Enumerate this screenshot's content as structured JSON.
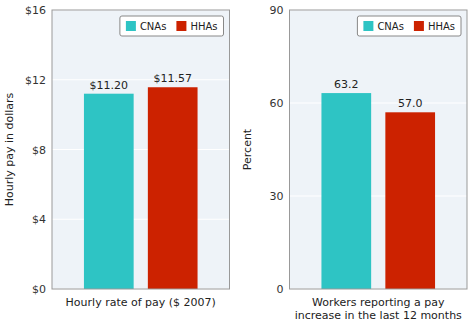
{
  "chart_data": [
    {
      "type": "bar",
      "xlabel": "Hourly rate of pay ($ 2007)",
      "ylabel": "Hourly pay in dollars",
      "categories": [
        "CNAs",
        "HHAs"
      ],
      "values": [
        11.2,
        11.57
      ],
      "value_labels": [
        "$11.20",
        "$11.57"
      ],
      "colors": [
        "#2EC4C4",
        "#CC2200"
      ],
      "ylim": [
        0,
        16
      ],
      "yticks": [
        {
          "value": 0,
          "label": "$0"
        },
        {
          "value": 4,
          "label": "$4"
        },
        {
          "value": 8,
          "label": "$8"
        },
        {
          "value": 12,
          "label": "$12"
        },
        {
          "value": 16,
          "label": "$16"
        }
      ],
      "grid": true,
      "legend": "upper right",
      "data_labels": true,
      "tick_labels": "y"
    },
    {
      "type": "bar",
      "xlabel": "Workers reporting a pay\nincrease in the last 12 months",
      "ylabel": "Percent",
      "categories": [
        "CNAs",
        "HHAs"
      ],
      "values": [
        63.2,
        57.0
      ],
      "value_labels": [
        "63.2",
        "57.0"
      ],
      "colors": [
        "#2EC4C4",
        "#CC2200"
      ],
      "ylim": [
        0,
        90
      ],
      "yticks": [
        0,
        30,
        60,
        90
      ],
      "grid": true,
      "legend": "upper right",
      "data_labels": true,
      "tick_labels": "y"
    }
  ]
}
